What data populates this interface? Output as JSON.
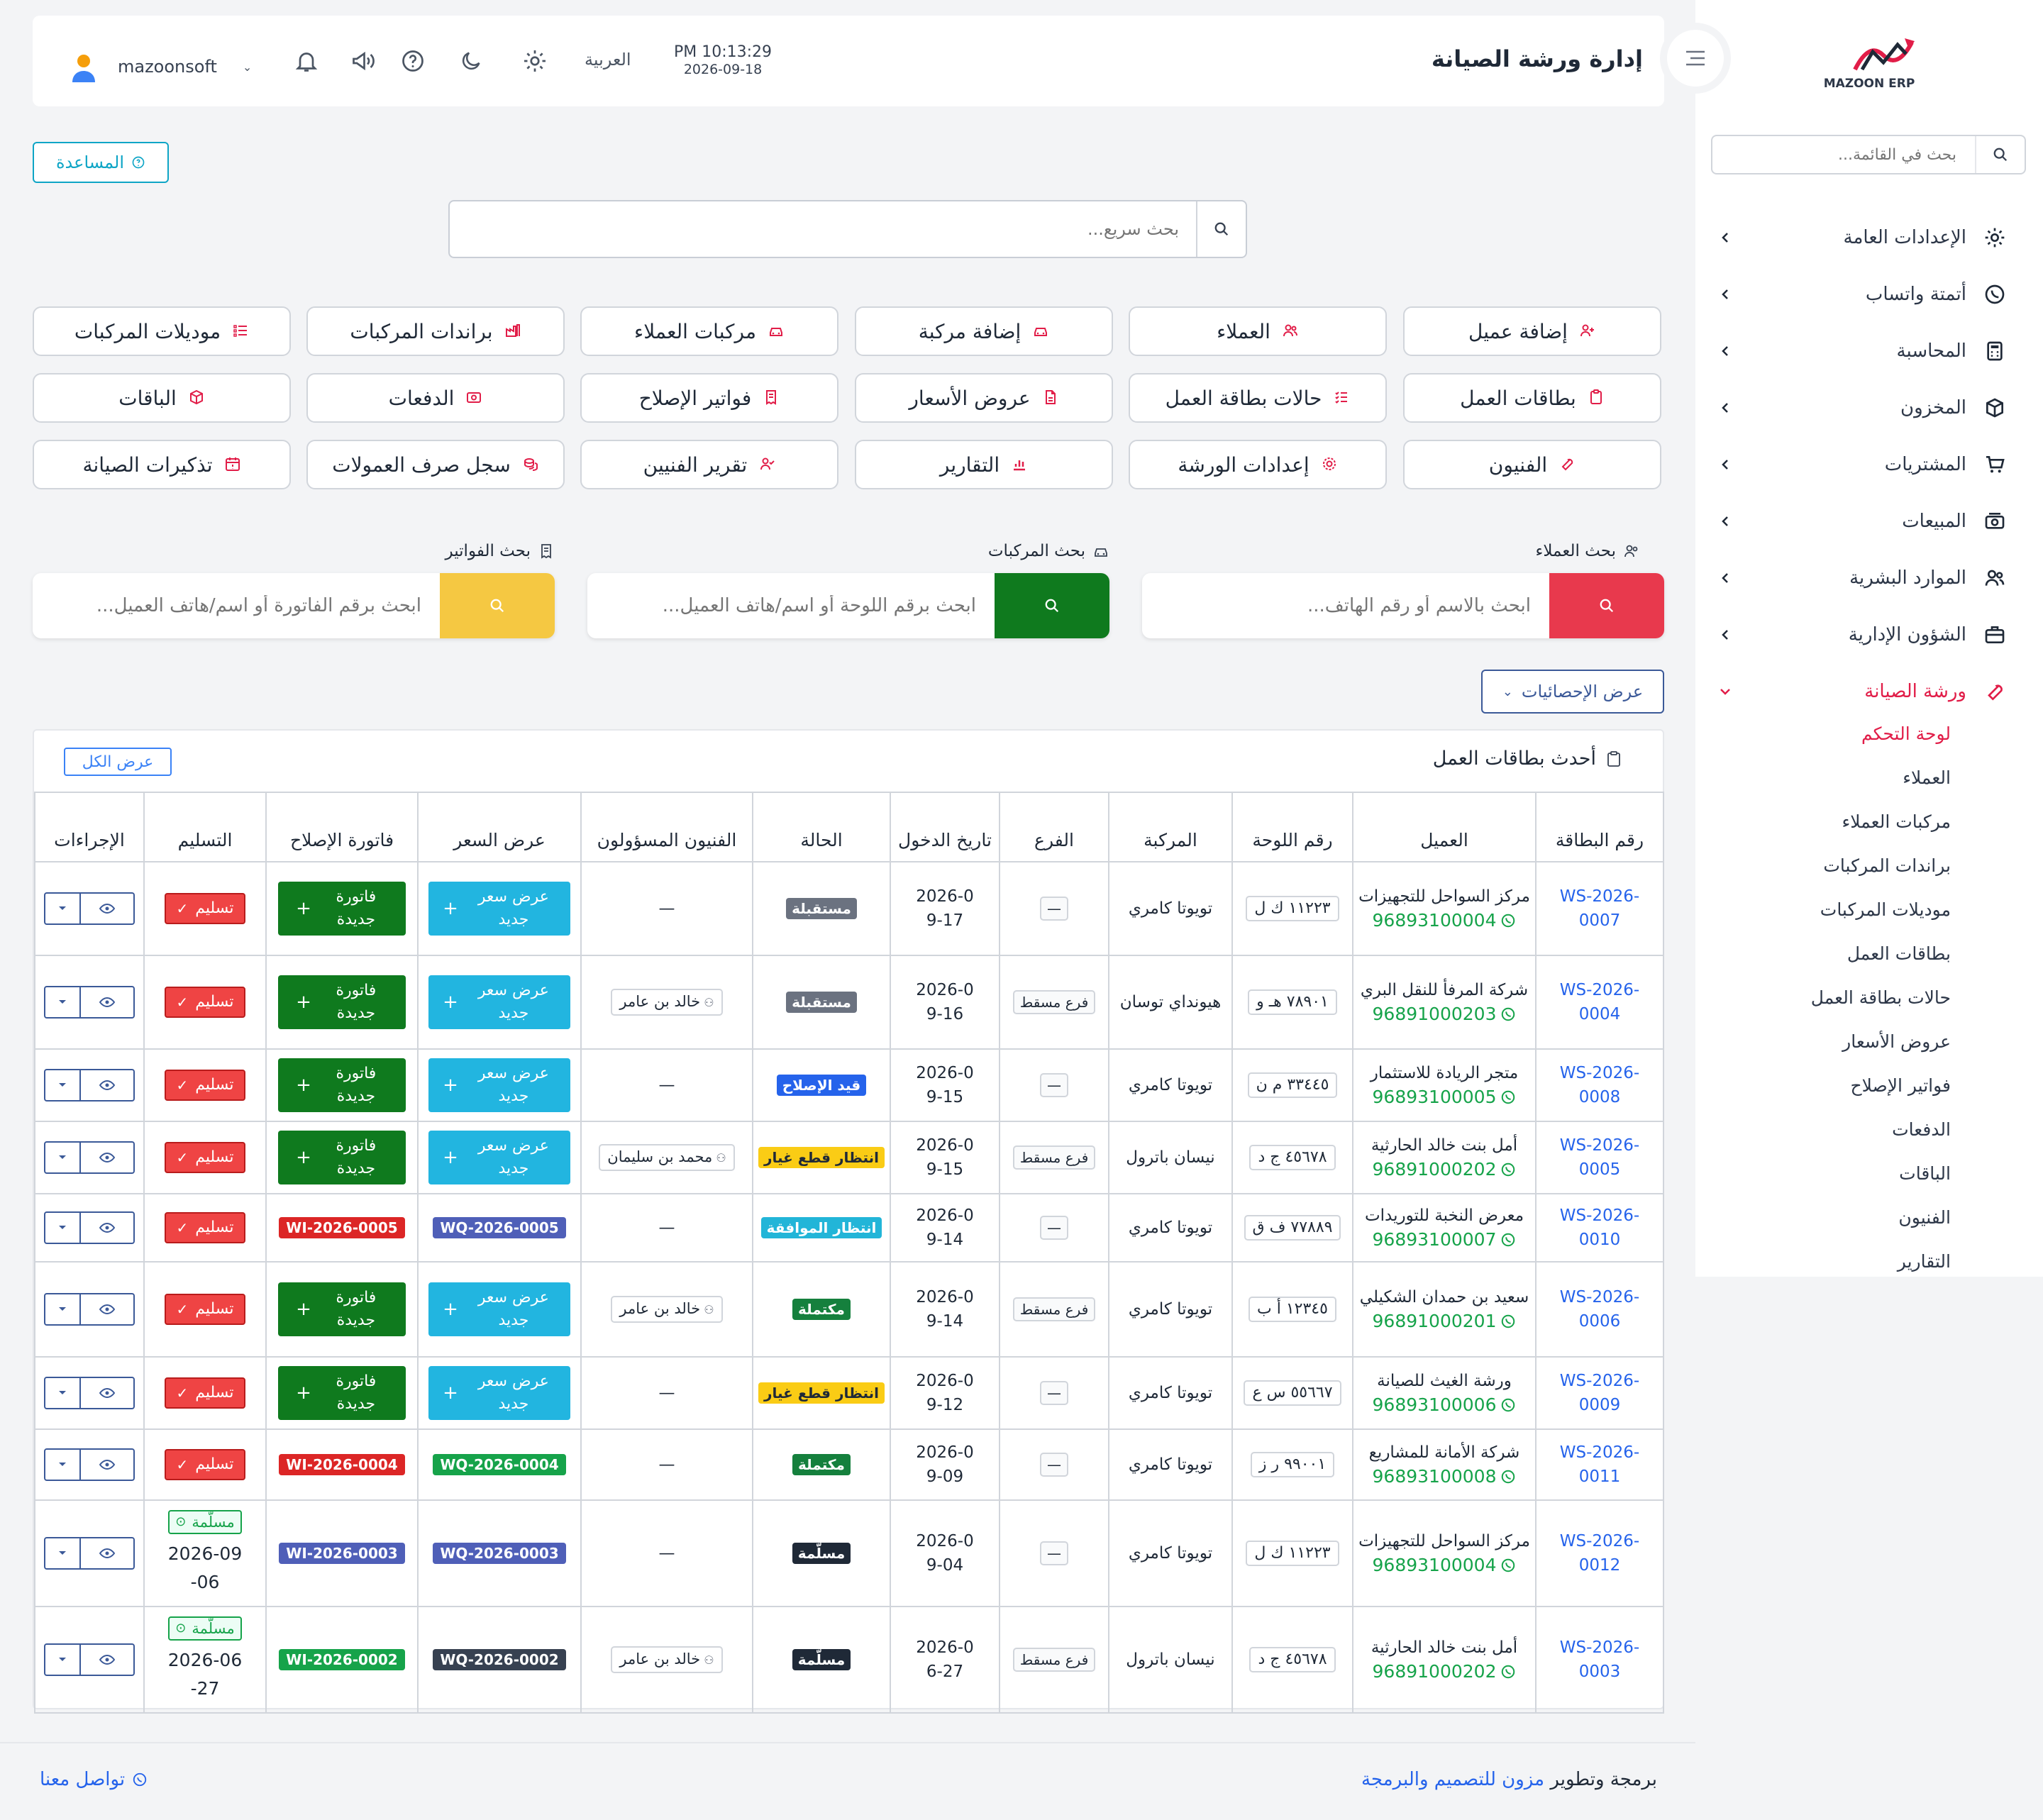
{
  "sidebar": {
    "logo_text": "MAZOON ERP",
    "search_placeholder": "بحث في القائمة...",
    "items": [
      {
        "label": "الإعدادات العامة",
        "icon": "gear-icon"
      },
      {
        "label": "أتمتة واتساب",
        "icon": "whatsapp-icon"
      },
      {
        "label": "المحاسبة",
        "icon": "calculator-icon"
      },
      {
        "label": "المخزون",
        "icon": "box-icon"
      },
      {
        "label": "المشتريات",
        "icon": "cart-icon"
      },
      {
        "label": "المبيعات",
        "icon": "cash-icon"
      },
      {
        "label": "الموارد البشرية",
        "icon": "users-icon"
      },
      {
        "label": "الشؤون الإدارية",
        "icon": "briefcase-icon"
      },
      {
        "label": "ورشة الصيانة",
        "icon": "wrench-icon"
      }
    ],
    "sub_items": [
      "لوحة التحكم",
      "العملاء",
      "مركبات العملاء",
      "براندات المركبات",
      "موديلات المركبات",
      "بطاقات العمل",
      "حالات بطاقة العمل",
      "عروض الأسعار",
      "فواتير الإصلاح",
      "الدفعات",
      "الباقات",
      "الفنيون",
      "التقارير"
    ]
  },
  "header": {
    "title": "إدارة ورشة الصيانة",
    "time": "PM 10:13:29",
    "date": "2026-09-18",
    "language": "العربية",
    "username": "mazoonsoft"
  },
  "help_label": "المساعدة",
  "quick_search_placeholder": "بحث سريع...",
  "shortcuts": [
    [
      "إضافة عميل",
      "العملاء",
      "إضافة مركبة",
      "مركبات العملاء",
      "براندات المركبات",
      "موديلات المركبات"
    ],
    [
      "بطاقات العمل",
      "حالات بطاقة العمل",
      "عروض الأسعار",
      "فواتير الإصلاح",
      "الدفعات",
      "الباقات"
    ],
    [
      "الفنيون",
      "إعدادات الورشة",
      "التقارير",
      "تقرير الفنيين",
      "سجل صرف العمولات",
      "تذكيرات الصيانة"
    ]
  ],
  "search_panels": {
    "customers": {
      "label": "بحث العملاء",
      "placeholder": "ابحث بالاسم أو رقم الهاتف...",
      "color": "#e8394d"
    },
    "vehicles": {
      "label": "بحث المركبات",
      "placeholder": "ابحث برقم اللوحة أو اسم/هاتف العميل...",
      "color": "#0f7a1e"
    },
    "invoices": {
      "label": "بحث الفواتير",
      "placeholder": "ابحث برقم الفاتورة أو اسم/هاتف العميل...",
      "color": "#f5c842"
    }
  },
  "stats_button": "عرض الإحصائيات",
  "card": {
    "title": "أحدث بطاقات العمل",
    "view_all": "عرض الكل",
    "columns": [
      "رقم البطاقة",
      "العميل",
      "رقم اللوحة",
      "المركبة",
      "الفرع",
      "تاريخ الدخول",
      "الحالة",
      "الفنيون المسؤولون",
      "عرض السعر",
      "فاتورة الإصلاح",
      "التسليم",
      "الإجراءات"
    ],
    "rows": [
      {
        "card": "WS-2026-0007",
        "client": "مركز السواحل للتجهيزات",
        "phone": "96893100004",
        "plate": "١١٢٢٣ ك ل",
        "vehicle": "تويوتا كامري",
        "branch": "—",
        "date": "2026-09-17",
        "status": "مستقبلة",
        "status_color": "#6b7280",
        "tech": "—",
        "quote": "",
        "invoice": "",
        "delivered": "",
        "delivered_date": ""
      },
      {
        "card": "WS-2026-0004",
        "client": "شركة المرفأ للنقل البري",
        "phone": "96891000203",
        "plate": "٧٨٩٠١ هـ و",
        "vehicle": "هيونداي توسان",
        "branch": "فرع مسقط",
        "date": "2026-09-16",
        "status": "مستقبلة",
        "status_color": "#6b7280",
        "tech": "خالد بن عامر",
        "quote": "",
        "invoice": "",
        "delivered": "",
        "delivered_date": ""
      },
      {
        "card": "WS-2026-0008",
        "client": "متجر الريادة للاستثمار",
        "phone": "96893100005",
        "plate": "٣٣٤٤٥ م ن",
        "vehicle": "تويوتا كامري",
        "branch": "—",
        "date": "2026-09-15",
        "status": "قيد الإصلاح",
        "status_color": "#2563eb",
        "tech": "—",
        "quote": "",
        "invoice": "",
        "delivered": "",
        "delivered_date": ""
      },
      {
        "card": "WS-2026-0005",
        "client": "أمل بنت خالد الحارثية",
        "phone": "96891000202",
        "plate": "٤٥٦٧٨ ج د",
        "vehicle": "نيسان باترول",
        "branch": "فرع مسقط",
        "date": "2026-09-15",
        "status": "انتظار قطع غيار",
        "status_color": "#facc15",
        "tech": "محمد بن سليمان",
        "quote": "",
        "invoice": "",
        "delivered": "",
        "delivered_date": ""
      },
      {
        "card": "WS-2026-0010",
        "client": "معرض النخبة للتوريدات",
        "phone": "96893100007",
        "plate": "٧٧٨٨٩ ف ق",
        "vehicle": "تويوتا كامري",
        "branch": "—",
        "date": "2026-09-14",
        "status": "انتظار الموافقة",
        "status_color": "#22b5d8",
        "tech": "—",
        "quote": "WQ-2026-0005",
        "quote_color": "#4f5fb8",
        "invoice": "WI-2026-0005",
        "invoice_color": "#dc2626",
        "delivered": "",
        "delivered_date": ""
      },
      {
        "card": "WS-2026-0006",
        "client": "سعيد بن حمدان الشكيلي",
        "phone": "96891000201",
        "plate": "١٢٣٤٥ أ ب",
        "vehicle": "تويوتا كامري",
        "branch": "فرع مسقط",
        "date": "2026-09-14",
        "status": "مكتملة",
        "status_color": "#15803d",
        "tech": "خالد بن عامر",
        "quote": "",
        "invoice": "",
        "delivered": "",
        "delivered_date": ""
      },
      {
        "card": "WS-2026-0009",
        "client": "ورشة الغيث للصيانة",
        "phone": "96893100006",
        "plate": "٥٥٦٦٧ س ع",
        "vehicle": "تويوتا كامري",
        "branch": "—",
        "date": "2026-09-12",
        "status": "انتظار قطع غيار",
        "status_color": "#facc15",
        "tech": "—",
        "quote": "",
        "invoice": "",
        "delivered": "",
        "delivered_date": ""
      },
      {
        "card": "WS-2026-0011",
        "client": "شركة الأمانة للمشاريع",
        "phone": "96893100008",
        "plate": "٩٩٠٠١ ر ز",
        "vehicle": "تويوتا كامري",
        "branch": "—",
        "date": "2026-09-09",
        "status": "مكتملة",
        "status_color": "#15803d",
        "tech": "—",
        "quote": "WQ-2026-0004",
        "quote_color": "#16a34a",
        "invoice": "WI-2026-0004",
        "invoice_color": "#dc2626",
        "delivered": "",
        "delivered_date": ""
      },
      {
        "card": "WS-2026-0012",
        "client": "مركز السواحل للتجهيزات",
        "phone": "96893100004",
        "plate": "١١٢٢٣ ك ل",
        "vehicle": "تويوتا كامري",
        "branch": "—",
        "date": "2026-09-04",
        "status": "مسلّمة",
        "status_color": "#1f2937",
        "tech": "—",
        "quote": "WQ-2026-0003",
        "quote_color": "#4f5fb8",
        "invoice": "WI-2026-0003",
        "invoice_color": "#4f5fb8",
        "delivered": "مسلّمة",
        "delivered_date": "2026-09-06"
      },
      {
        "card": "WS-2026-0003",
        "client": "أمل بنت خالد الحارثية",
        "phone": "96891000202",
        "plate": "٤٥٦٧٨ ج د",
        "vehicle": "نيسان باترول",
        "branch": "فرع مسقط",
        "date": "2026-06-27",
        "status": "مسلّمة",
        "status_color": "#1f2937",
        "tech": "خالد بن عامر",
        "quote": "WQ-2026-0002",
        "quote_color": "#374151",
        "invoice": "WI-2026-0002",
        "invoice_color": "#16a34a",
        "delivered": "مسلّمة",
        "delivered_date": "2026-06-27"
      }
    ],
    "new_quote_label": "عرض سعر جديد",
    "new_invoice_label": "فاتورة جديدة",
    "deliver_label": "تسليم"
  },
  "footer": {
    "prefix": "برمجة وتطوير",
    "company": "مزون للتصميم والبرمجة",
    "contact": "تواصل معنا"
  }
}
